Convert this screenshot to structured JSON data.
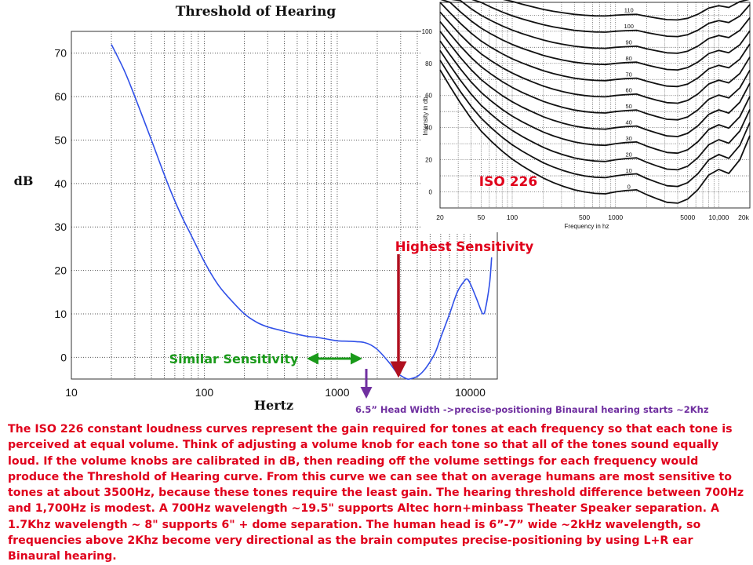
{
  "main_chart": {
    "type": "line",
    "title": "Threshold of Hearing",
    "xlabel": "Hertz",
    "ylabel": "dB",
    "xscale": "log",
    "xlim": [
      10,
      16000
    ],
    "ylim": [
      -5,
      75
    ],
    "grid": true,
    "x_ticks": [
      10,
      100,
      1000,
      10000
    ],
    "y_ticks": [
      0,
      10,
      20,
      30,
      40,
      50,
      60,
      70
    ],
    "series": [
      {
        "color": "#3050e8",
        "x": [
          20,
          25,
          30,
          40,
          50,
          60,
          70,
          80,
          100,
          125,
          150,
          200,
          250,
          300,
          400,
          500,
          600,
          700,
          800,
          1000,
          1200,
          1400,
          1600,
          1800,
          2000,
          2200,
          2500,
          2800,
          3000,
          3300,
          3500,
          4000,
          4500,
          5000,
          5500,
          6000,
          7000,
          8000,
          9000,
          9500,
          10000,
          11000,
          12000,
          12500,
          13000,
          14000,
          14500
        ],
        "y": [
          72,
          66,
          60,
          50,
          42,
          36,
          31.5,
          28,
          22,
          17,
          14,
          10,
          8,
          7,
          6,
          5.3,
          4.8,
          4.6,
          4.3,
          3.8,
          3.7,
          3.6,
          3.4,
          2.8,
          1.8,
          0.5,
          -1.5,
          -3.5,
          -4.2,
          -4.9,
          -5,
          -4.4,
          -3,
          -1,
          1.3,
          4.5,
          10,
          15,
          17.5,
          18,
          17,
          14,
          11,
          10,
          11,
          17,
          23
        ]
      }
    ]
  },
  "iso_chart": {
    "type": "line",
    "title": "ISO 226",
    "xlabel": "Frequency in hz",
    "ylabel": "Intensity in db",
    "xscale": "log",
    "xlim": [
      20,
      20000
    ],
    "ylim": [
      -10,
      118
    ],
    "grid": true,
    "x_tick_labels": [
      "20",
      "50",
      "100",
      "500",
      "1000",
      "5000",
      "10,000",
      "20k"
    ],
    "x_tick_values": [
      20,
      50,
      100,
      500,
      1000,
      5000,
      10000,
      20000
    ],
    "y_ticks": [
      0,
      20,
      40,
      60,
      80,
      100
    ],
    "curve_labels": [
      "110",
      "100",
      "90",
      "80",
      "70",
      "60",
      "50",
      "40",
      "30",
      "20",
      "10",
      "0"
    ],
    "phon_levels": [
      110,
      100,
      90,
      80,
      70,
      60,
      50,
      40,
      30,
      20,
      10,
      0
    ]
  },
  "annotations": {
    "highest_sensitivity": "Highest Sensitivity",
    "similar_sensitivity": "Similar Sensitivity",
    "head_width": "6.5” Head Width ->precise-positioning  Binaural hearing starts ~2Khz"
  },
  "caption": "The ISO 226 constant loudness curves represent the gain required for tones at each frequency so that each tone is perceived at equal volume. Think of adjusting a volume knob for each tone so that all of the tones sound equally loud. If the volume knobs are calibrated in dB, then reading off the volume settings for each frequency would produce the Threshold of Hearing curve. From this curve we can see that on average humans are most sensitive to tones at about 3500Hz, because these tones require the least gain.  The hearing threshold difference between 700Hz and 1,700Hz is modest. A 700Hz wavelength  ~19.5\" supports  Altec horn+minbass Theater Speaker separation.  A 1.7Khz wavelength ~ 8\" supports 6\" + dome  separation. The human head is 6”-7” wide ~2kHz wavelength, so frequencies above 2Khz become very directional as the brain computes precise-positioning by using L+R ear Binaural hearing.",
  "colors": {
    "curve": "#3050e8",
    "red_arrow": "#b01020",
    "green_arrow": "#1a9a1a",
    "purple_arrow": "#7030a0",
    "caption_text": "#e0001b",
    "iso_label": "#e0001b"
  }
}
